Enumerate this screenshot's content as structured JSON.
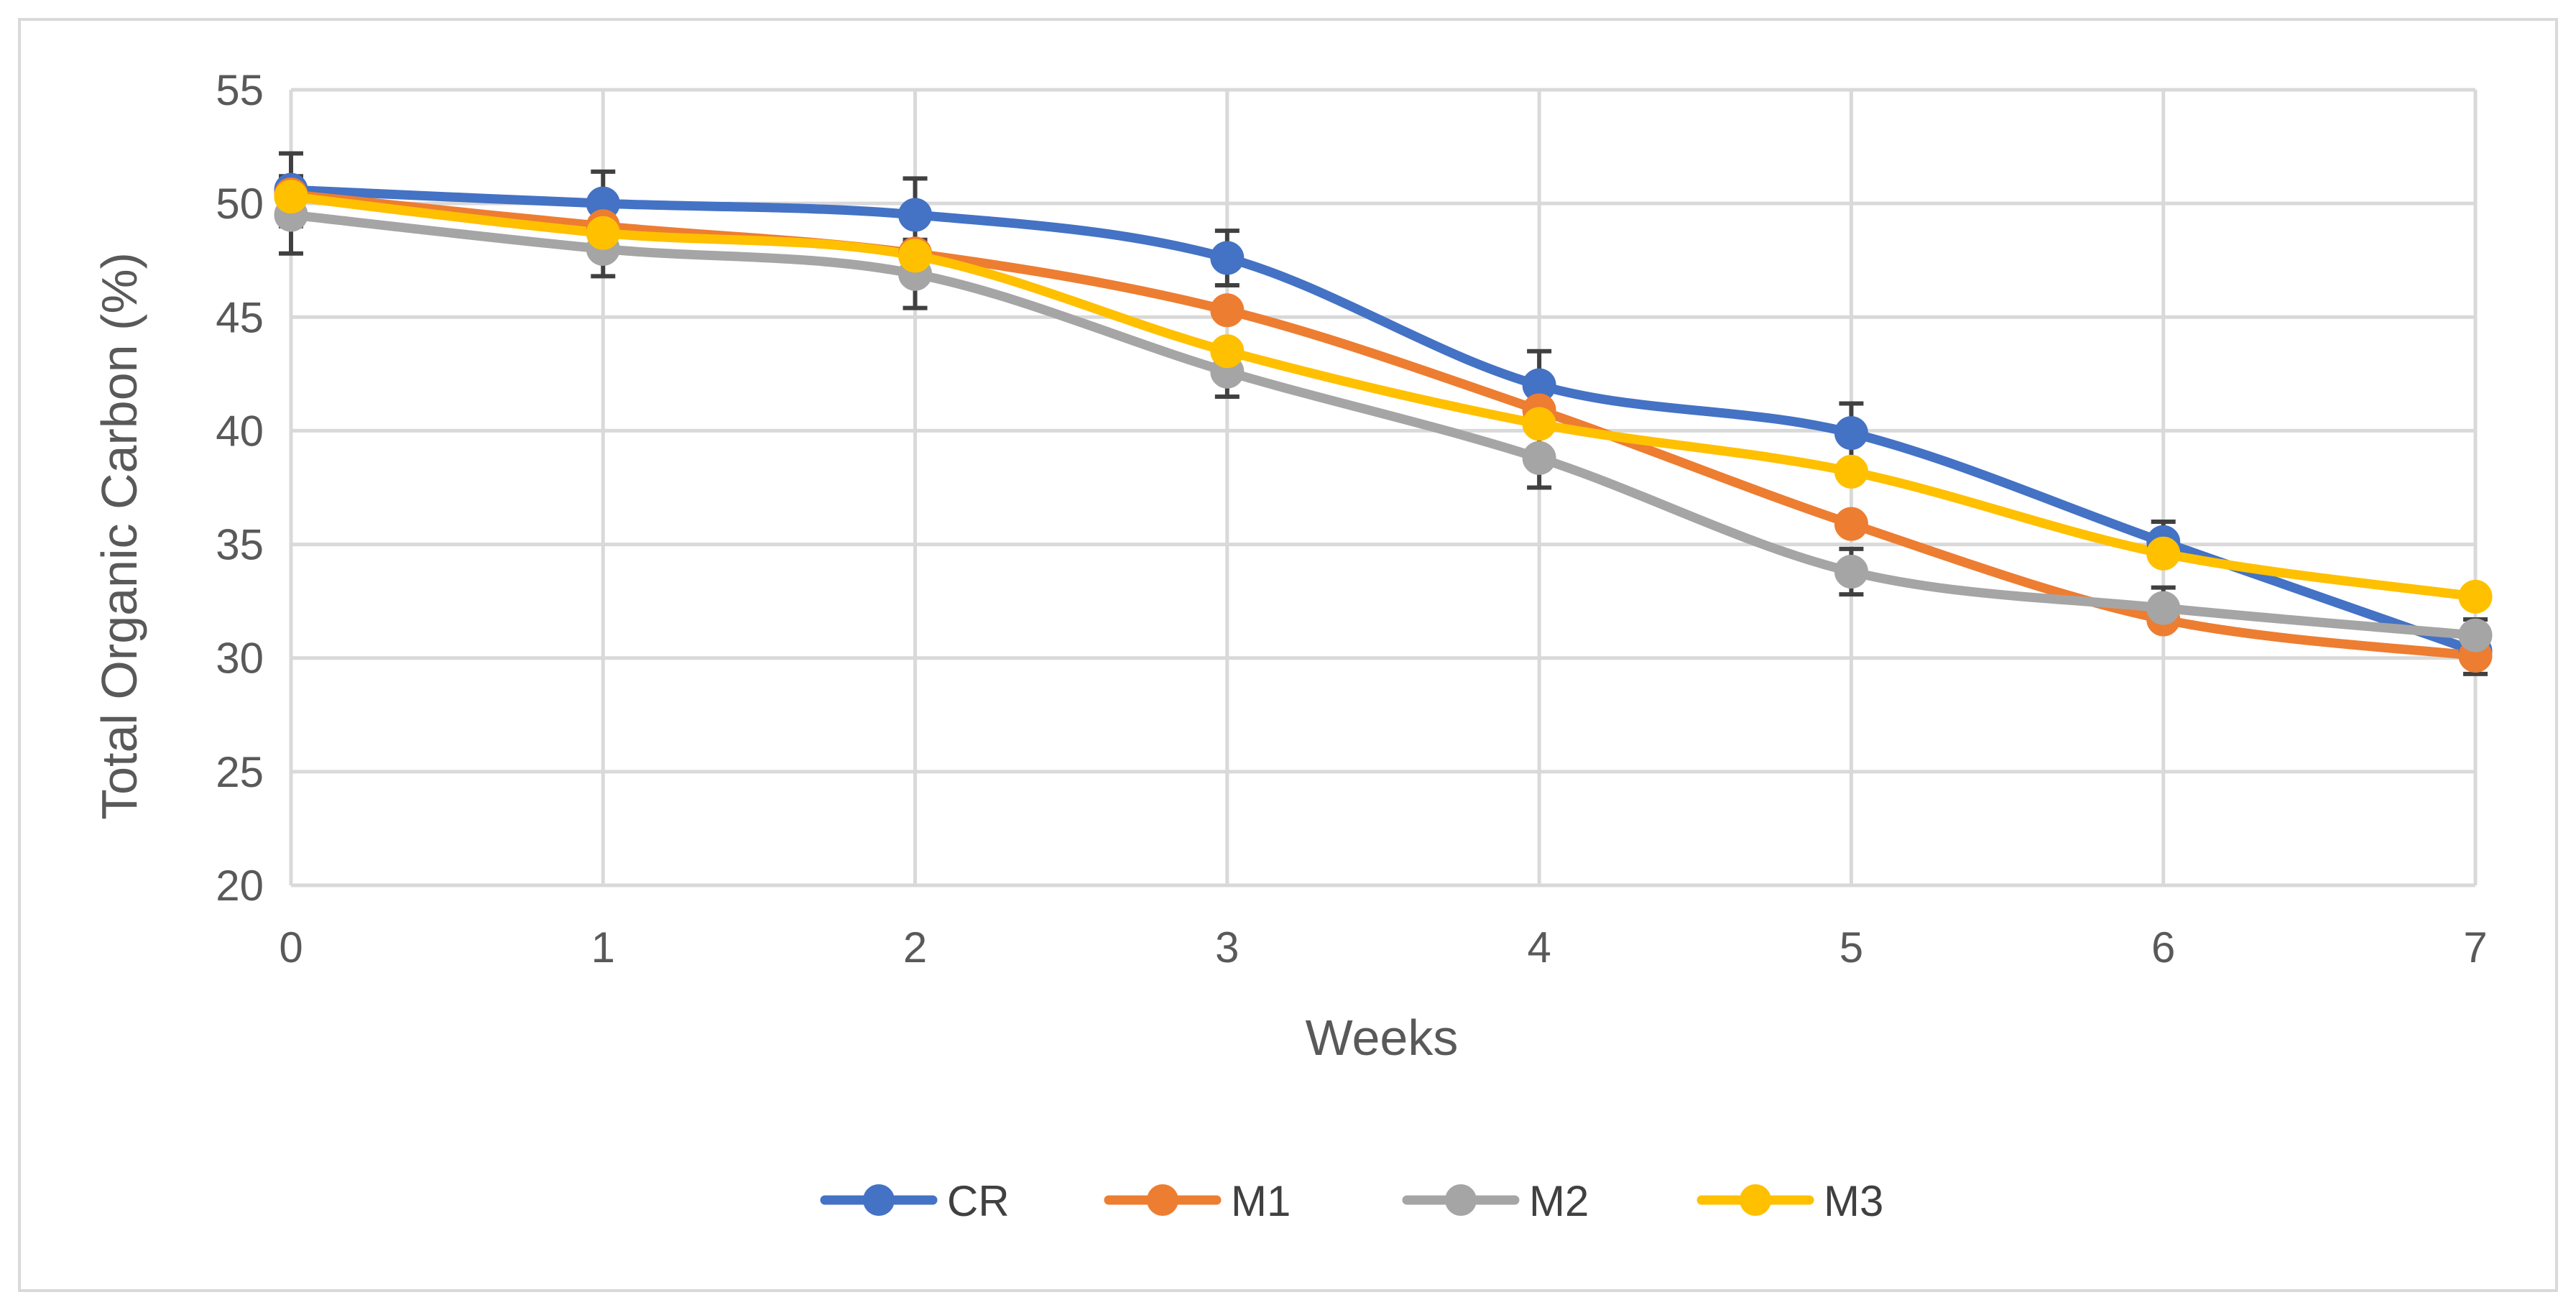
{
  "chart_data": {
    "type": "line",
    "title": "",
    "xlabel": "Weeks",
    "ylabel": "Total Organic Carbon (%)",
    "x": [
      0,
      1,
      2,
      3,
      4,
      5,
      6,
      7
    ],
    "xlim": [
      0,
      7
    ],
    "ylim": [
      20,
      55
    ],
    "yticks": [
      20,
      25,
      30,
      35,
      40,
      45,
      50,
      55
    ],
    "grid": true,
    "legend": "bottom",
    "series": [
      {
        "name": "CR",
        "color": "#4472C4",
        "values": [
          50.6,
          50.0,
          49.5,
          47.6,
          42.0,
          39.9,
          35.1,
          30.3
        ],
        "errors": [
          1.6,
          1.4,
          1.6,
          1.2,
          1.5,
          1.3,
          0.9,
          1.0
        ]
      },
      {
        "name": "M1",
        "color": "#ED7D31",
        "values": [
          50.4,
          49.0,
          47.8,
          45.3,
          40.9,
          35.9,
          31.7,
          30.1
        ],
        "errors": [
          0,
          0,
          0,
          0,
          0,
          0,
          0,
          0
        ]
      },
      {
        "name": "M2",
        "color": "#A5A5A5",
        "values": [
          49.5,
          48.0,
          46.9,
          42.6,
          38.8,
          33.8,
          32.2,
          31.0
        ],
        "errors": [
          1.7,
          1.2,
          1.5,
          1.1,
          1.3,
          1.0,
          0.9,
          0.7
        ]
      },
      {
        "name": "M3",
        "color": "#FFC000",
        "values": [
          50.3,
          48.7,
          47.7,
          43.5,
          40.3,
          38.2,
          34.6,
          32.7
        ],
        "errors": [
          0,
          0,
          0,
          0,
          0,
          0,
          0,
          0
        ]
      }
    ]
  }
}
